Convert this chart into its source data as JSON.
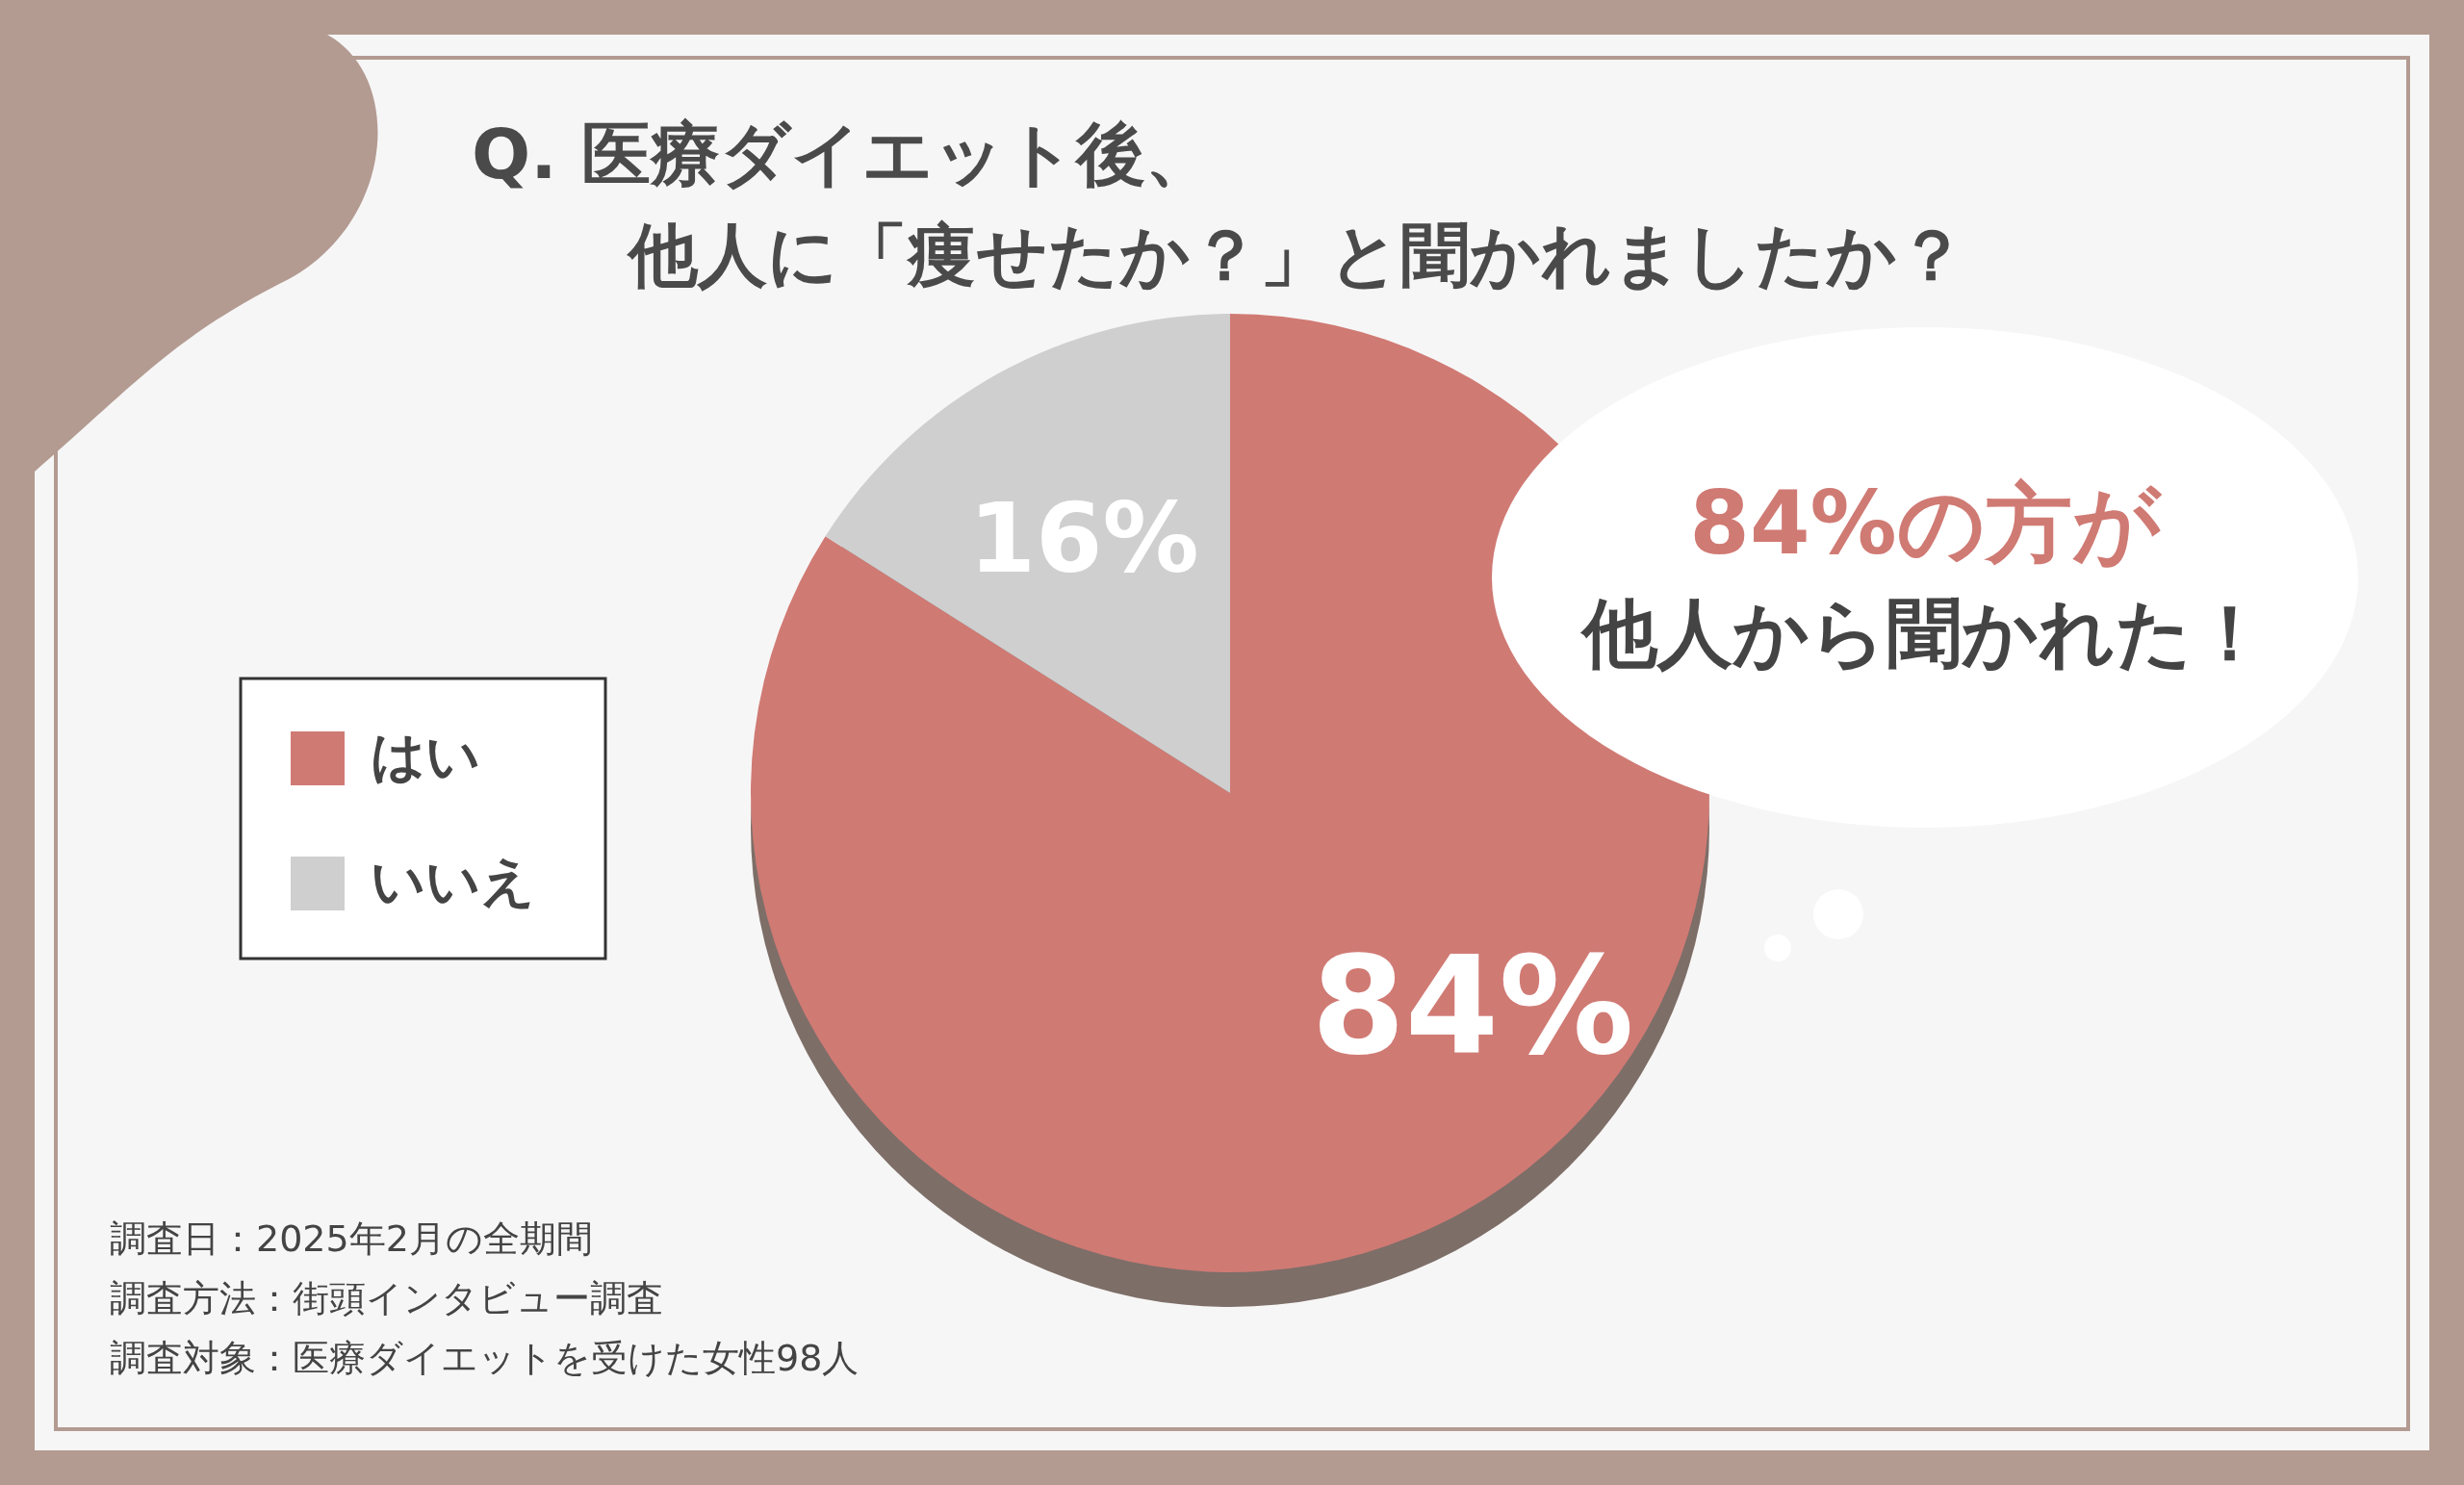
{
  "chart_data": {
    "type": "pie",
    "title": "Q. 医療ダイエット後、",
    "subtitle": "他人に「痩せたか？」と聞かれましたか？",
    "categories": [
      "はい",
      "いいえ"
    ],
    "values": [
      84,
      16
    ],
    "colors": [
      "#d07a74",
      "#cfcfcf"
    ],
    "value_labels": [
      "84%",
      "16%"
    ],
    "legend": "left",
    "annotations": [
      "84%の方が",
      "他人から聞かれた！",
      "調査日：2025年2月の全期間",
      "調査方法：街頭インタビュー調査",
      "調査対象：医療ダイエットを受けた女性98人"
    ]
  }
}
